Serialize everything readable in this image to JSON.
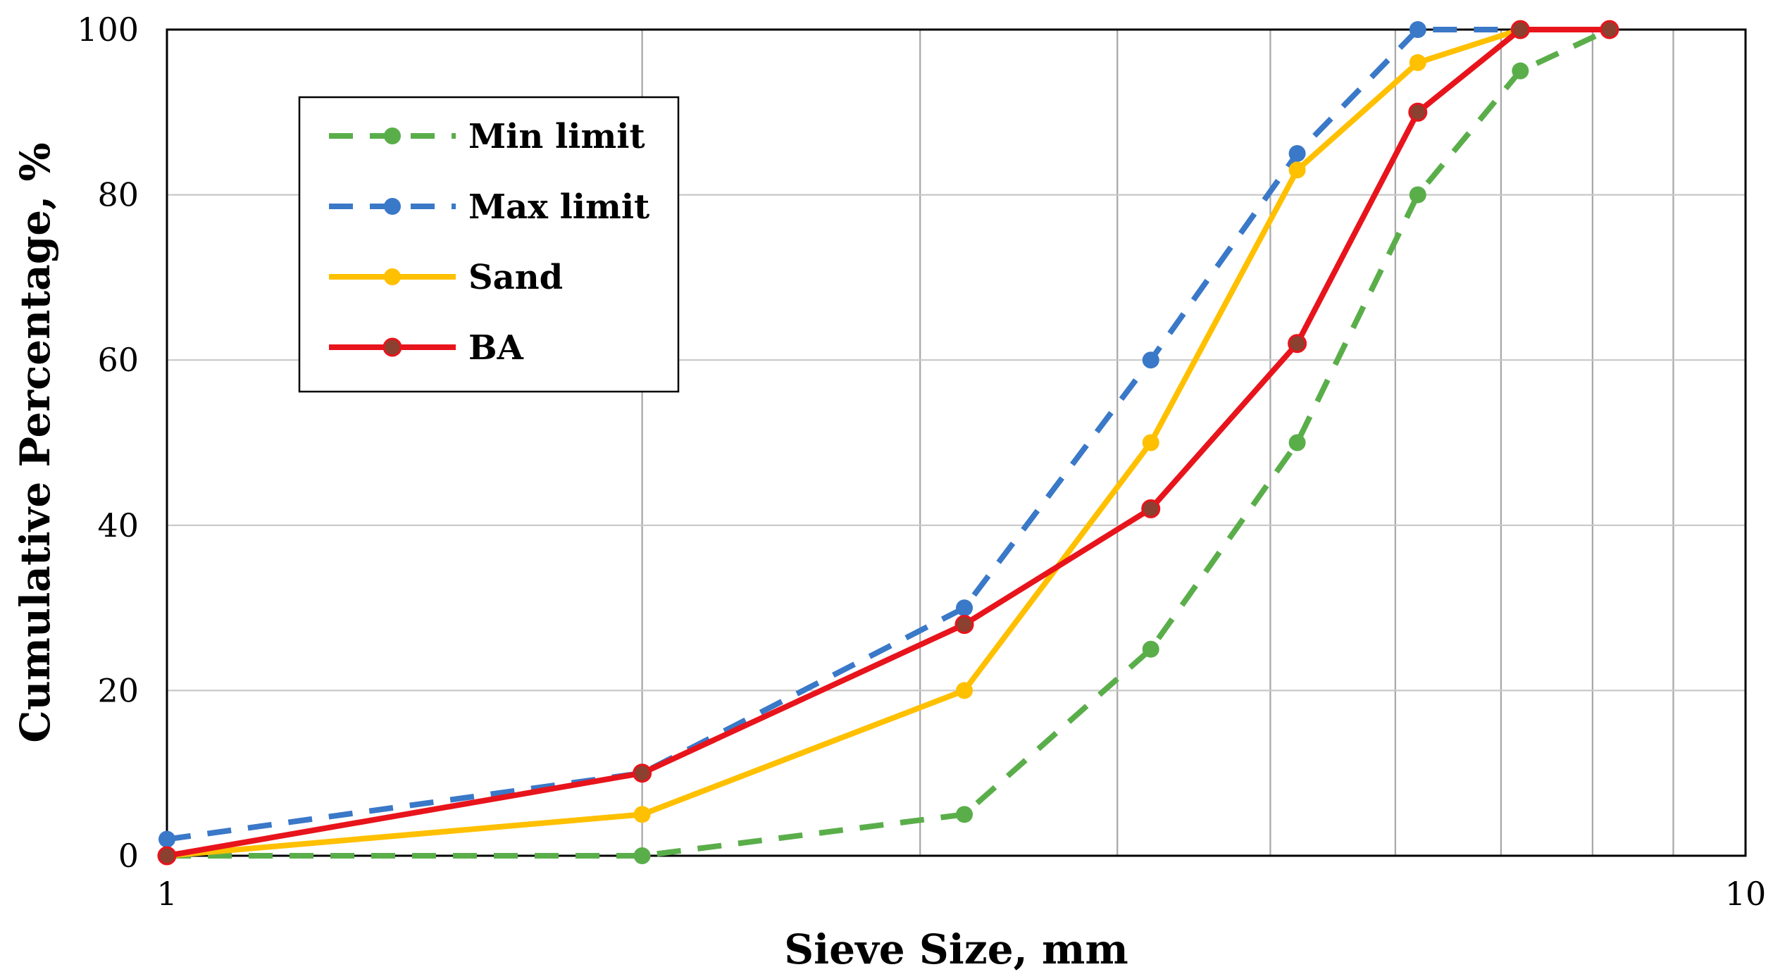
{
  "chart_data": {
    "type": "line",
    "x_scale": "log",
    "xlabel": "Sieve Size, mm",
    "ylabel": "Cumulative Percentage, %",
    "xlim": [
      1,
      10
    ],
    "ylim": [
      0,
      100
    ],
    "x_ticks": [
      1,
      10
    ],
    "y_ticks": [
      0,
      20,
      40,
      60,
      80,
      100
    ],
    "grid": true,
    "legend_position": "top-left",
    "series": [
      {
        "name": "Min limit",
        "color": "#5aae4a",
        "line_style": "dashed",
        "x": [
          1.0,
          2.0,
          3.2,
          4.2,
          5.2,
          6.2,
          7.2,
          8.2
        ],
        "y": [
          0,
          0,
          5,
          25,
          50,
          80,
          95,
          100
        ]
      },
      {
        "name": "Max limit",
        "color": "#3a78c8",
        "line_style": "dashed",
        "x": [
          1.0,
          2.0,
          3.2,
          4.2,
          5.2,
          6.2,
          7.2,
          8.2
        ],
        "y": [
          2,
          10,
          30,
          60,
          85,
          100,
          100,
          100
        ]
      },
      {
        "name": "Sand",
        "color": "#ffc000",
        "line_style": "solid",
        "x": [
          1.0,
          2.0,
          3.2,
          4.2,
          5.2,
          6.2,
          7.2
        ],
        "y": [
          0,
          5,
          20,
          50,
          83,
          96,
          100
        ]
      },
      {
        "name": "BA",
        "color": "#e8141c",
        "marker_color": "#8b4030",
        "line_style": "solid",
        "x": [
          1.0,
          2.0,
          3.2,
          4.2,
          5.2,
          6.2,
          7.2,
          8.2
        ],
        "y": [
          0,
          10,
          28,
          42,
          62,
          90,
          100,
          100
        ]
      }
    ]
  }
}
